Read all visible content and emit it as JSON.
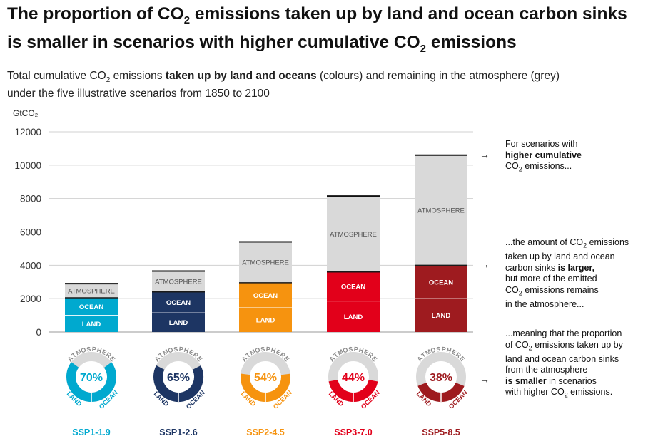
{
  "title_line1_a": "The proportion of CO",
  "title_line1_sub": "2",
  "title_line1_b": " emissions taken up by land and ocean carbon sinks",
  "title_line2_a": "is smaller in scenarios with higher cumulative CO",
  "title_line2_sub": "2",
  "title_line2_b": " emissions",
  "subtitle": {
    "p1": "Total cumulative CO",
    "sub": "2",
    "p2": " emissions ",
    "bold": "taken up by land and oceans",
    "p3": " (colours) and remaining in the atmosphere (grey)",
    "line2": "under the five illustrative scenarios from 1850 to 2100"
  },
  "notes": {
    "n1_a": "For scenarios with",
    "n1_b": "higher cumulative",
    "n1_c": "CO",
    "n1_c_sub": "2",
    "n1_d": " emissions...",
    "n2_a": "...the amount of CO",
    "n2_a_sub": "2",
    "n2_b": " emissions",
    "n2_c": "taken up by land and ocean",
    "n2_d1": "carbon sinks ",
    "n2_d2": "is larger,",
    "n2_e": "but more of the emitted",
    "n2_f": "CO",
    "n2_f_sub": "2",
    "n2_g": " emissions remains",
    "n2_h": "in the atmosphere...",
    "n3_a": "...meaning that the proportion",
    "n3_b": "of CO",
    "n3_b_sub": "2",
    "n3_c": " emissions taken up by",
    "n3_d": "land and ocean carbon sinks",
    "n3_e": "from the atmosphere",
    "n3_f": "is smaller",
    "n3_g": " in scenarios",
    "n3_h": "with higher CO",
    "n3_h_sub": "2",
    "n3_i": " emissions."
  },
  "arrow_glyph": "→",
  "chart_data": {
    "type": "bar",
    "stacked": true,
    "ylabel": "GtCO₂",
    "ylim": [
      0,
      12000
    ],
    "yticks": [
      "0",
      "2000",
      "4000",
      "6000",
      "8000",
      "10000",
      "12000"
    ],
    "grid": true,
    "categories": [
      "SSP1-1.9",
      "SSP1-2.6",
      "SSP2-4.5",
      "SSP3-7.0",
      "SSP5-8.5"
    ],
    "series": [
      {
        "name": "LAND",
        "values": [
          1000,
          1150,
          1450,
          1850,
          2000
        ]
      },
      {
        "name": "OCEAN",
        "values": [
          1050,
          1250,
          1500,
          1750,
          2000
        ]
      },
      {
        "name": "ATMOSPHERE",
        "values": [
          850,
          1250,
          2450,
          4550,
          6600
        ]
      }
    ],
    "segment_labels": [
      "LAND",
      "OCEAN",
      "ATMOSPHERE"
    ],
    "colors": {
      "SSP1-1.9": "#00a9cf",
      "SSP1-2.6": "#1d3563",
      "SSP2-4.5": "#f6930f",
      "SSP3-7.0": "#e2001a",
      "SSP5-8.5": "#9e1b1f",
      "atmosphere": "#d9d9d9"
    },
    "donuts": [
      {
        "scenario": "SSP1-1.9",
        "percent_label": "70%",
        "fraction": 0.7
      },
      {
        "scenario": "SSP1-2.6",
        "percent_label": "65%",
        "fraction": 0.65
      },
      {
        "scenario": "SSP2-4.5",
        "percent_label": "54%",
        "fraction": 0.54
      },
      {
        "scenario": "SSP3-7.0",
        "percent_label": "44%",
        "fraction": 0.44
      },
      {
        "scenario": "SSP5-8.5",
        "percent_label": "38%",
        "fraction": 0.38
      }
    ],
    "donut_labels": {
      "atmosphere": "ATMOSPHERE",
      "land": "LAND",
      "ocean": "OCEAN"
    }
  }
}
